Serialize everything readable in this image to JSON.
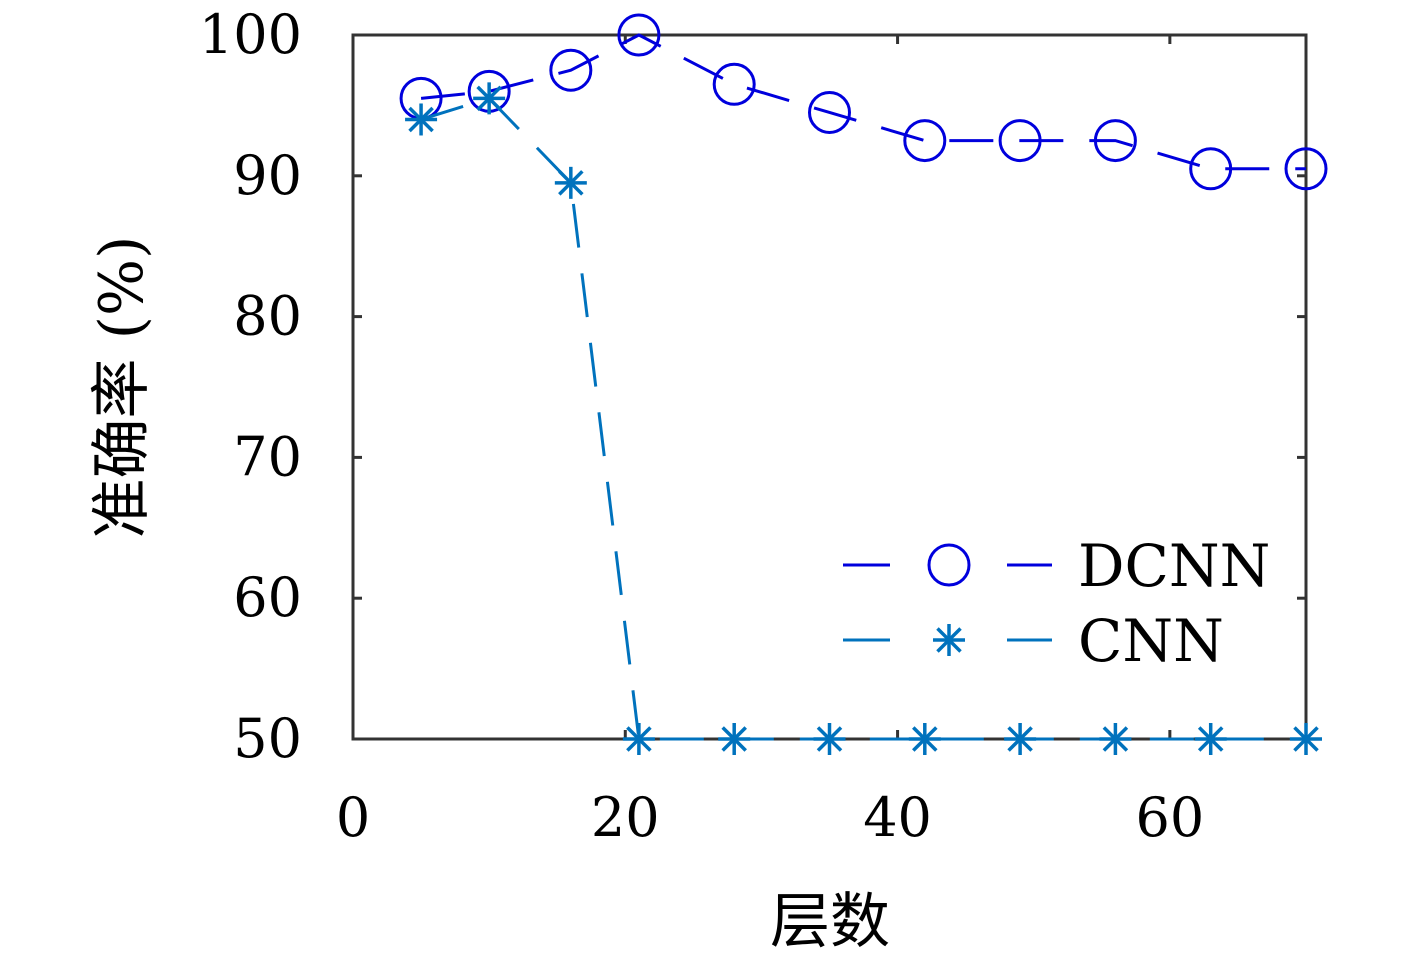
{
  "chart_data": {
    "type": "line",
    "title": "",
    "xlabel": "层数",
    "ylabel": "准确率 (%)",
    "xlim": [
      0,
      70
    ],
    "ylim": [
      50,
      100
    ],
    "xticks": [
      0,
      20,
      40,
      60
    ],
    "yticks": [
      50,
      60,
      70,
      80,
      90,
      100
    ],
    "grid": false,
    "legend_position": "lower-right",
    "series": [
      {
        "name": "DCNN",
        "color": "#0000dd",
        "marker": "circle",
        "line_style": "dashed",
        "x": [
          5,
          10,
          16,
          21,
          28,
          35,
          42,
          49,
          56,
          63,
          70
        ],
        "y": [
          95.5,
          96,
          97.5,
          100,
          96.5,
          94.5,
          92.5,
          92.5,
          92.5,
          90.5,
          90.5
        ]
      },
      {
        "name": "CNN",
        "color": "#0072bd",
        "marker": "asterisk",
        "line_style": "dashed",
        "x": [
          5,
          10,
          16,
          21,
          28,
          35,
          42,
          49,
          56,
          63,
          70
        ],
        "y": [
          94,
          95.5,
          89.5,
          50,
          50,
          50,
          50,
          50,
          50,
          50,
          50
        ]
      }
    ]
  }
}
